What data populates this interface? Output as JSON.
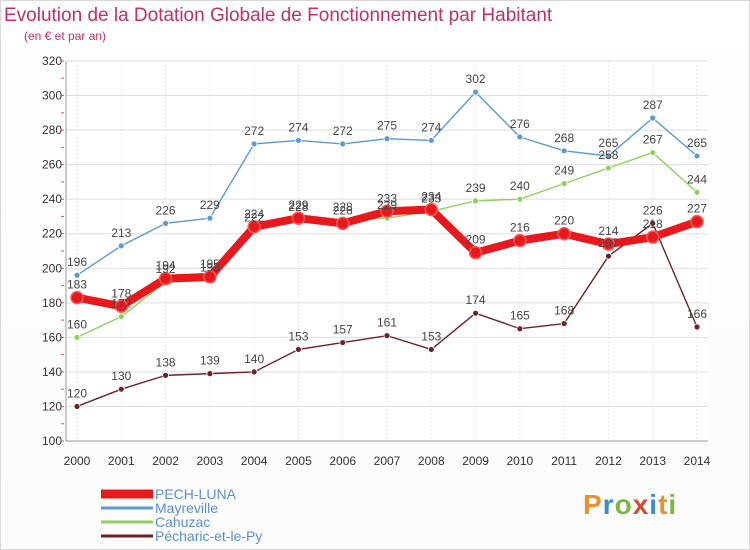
{
  "title": "Evolution de la Dotation Globale de Fonctionnement par Habitant",
  "subtitle": "(en € et par an)",
  "logo": {
    "letters": [
      "P",
      "r",
      "o",
      "x",
      "i",
      "t",
      "i"
    ],
    "colors": [
      "#e8912d",
      "#3a8ccc",
      "#7ab648",
      "#d64a3a",
      "#3a8ccc",
      "#e8912d",
      "#7ab648"
    ]
  },
  "chart_data": {
    "type": "line",
    "x": [
      "2000",
      "2001",
      "2002",
      "2003",
      "2004",
      "2005",
      "2006",
      "2007",
      "2008",
      "2009",
      "2010",
      "2011",
      "2012",
      "2013",
      "2014"
    ],
    "ylim": [
      100,
      320
    ],
    "yticks": [
      "100",
      "120",
      "140",
      "160",
      "180",
      "200",
      "220",
      "240",
      "260",
      "280",
      "300",
      "320"
    ],
    "grid": true,
    "legend_position": "bottom-left",
    "series": [
      {
        "name": "PECH-LUNA",
        "color": "#e8191c",
        "values": [
          183,
          178,
          194,
          195,
          224,
          229,
          226,
          233,
          234,
          209,
          216,
          220,
          214,
          218,
          227
        ]
      },
      {
        "name": "Mayreville",
        "color": "#5b9bd0",
        "values": [
          196,
          213,
          226,
          229,
          272,
          274,
          272,
          275,
          274,
          302,
          276,
          268,
          265,
          287,
          265
        ]
      },
      {
        "name": "Cahuzac",
        "color": "#8fd060",
        "values": [
          160,
          172,
          192,
          193,
          222,
          228,
          228,
          229,
          233,
          239,
          240,
          249,
          258,
          267,
          244
        ]
      },
      {
        "name": "Pécharic-et-le-Py",
        "color": "#6e2226",
        "values": [
          120,
          130,
          138,
          139,
          140,
          153,
          157,
          161,
          153,
          174,
          165,
          168,
          207,
          226,
          166
        ]
      }
    ],
    "data_labels": {
      "PECH-LUNA": [
        "183",
        "178",
        "194",
        "195",
        "224",
        "229",
        "226",
        "233",
        "234",
        "209",
        "216",
        "220",
        "214",
        "218",
        "227"
      ],
      "Mayreville": [
        "196",
        "213",
        "226",
        "229",
        "272",
        "274",
        "272",
        "275",
        "274",
        "302",
        "276",
        "268",
        "265",
        "287",
        "265"
      ],
      "Cahuzac": [
        "160",
        "172",
        "192",
        "193",
        "222",
        "228",
        "228",
        "229",
        "233",
        "239",
        "240",
        "249",
        "258",
        "267",
        "244"
      ],
      "Pécharic-et-le-Py": [
        "120",
        "130",
        "138",
        "139",
        "140",
        "153",
        "157",
        "161",
        "153",
        "174",
        "165",
        "168",
        "207",
        "226",
        "166"
      ]
    }
  }
}
